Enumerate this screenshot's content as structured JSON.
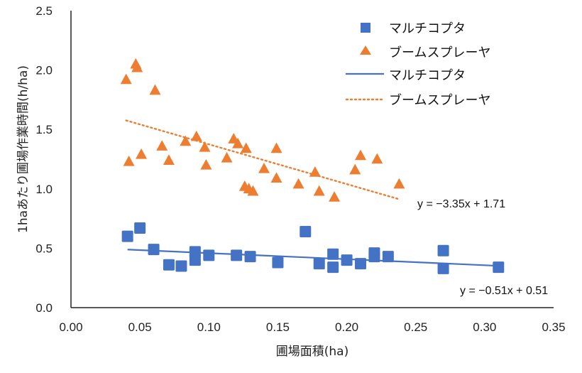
{
  "chart_data": {
    "type": "scatter",
    "title": "",
    "xlabel": "圃場面積(ha)",
    "ylabel": "1haあたり圃場作業時間(h/ha)",
    "xlim": [
      0,
      0.35
    ],
    "ylim": [
      0,
      2.5
    ],
    "xticks": [
      "0.00",
      "0.05",
      "0.10",
      "0.15",
      "0.20",
      "0.25",
      "0.30",
      "0.35"
    ],
    "xtick_values": [
      0,
      0.05,
      0.1,
      0.15,
      0.2,
      0.25,
      0.3,
      0.35
    ],
    "yticks": [
      "0.0",
      "0.5",
      "1.0",
      "1.5",
      "2.0",
      "2.5"
    ],
    "ytick_values": [
      0,
      0.5,
      1.0,
      1.5,
      2.0,
      2.5
    ],
    "grid": false,
    "legend_position": "top-right",
    "colors": {
      "multicopter": "#4472C4",
      "boom": "#ED7D31",
      "axis": "#222222"
    },
    "series": [
      {
        "name": "マルチコプタ",
        "marker": "square",
        "x": [
          0.041,
          0.05,
          0.06,
          0.071,
          0.08,
          0.09,
          0.09,
          0.1,
          0.12,
          0.13,
          0.15,
          0.17,
          0.18,
          0.19,
          0.19,
          0.2,
          0.21,
          0.22,
          0.22,
          0.23,
          0.27,
          0.27,
          0.31
        ],
        "y": [
          0.6,
          0.67,
          0.49,
          0.36,
          0.35,
          0.47,
          0.4,
          0.44,
          0.44,
          0.43,
          0.38,
          0.64,
          0.37,
          0.45,
          0.34,
          0.4,
          0.37,
          0.46,
          0.43,
          0.43,
          0.48,
          0.33,
          0.34
        ]
      },
      {
        "name": "ブームスプレーヤ",
        "marker": "triangle",
        "x": [
          0.04,
          0.047,
          0.048,
          0.061,
          0.042,
          0.051,
          0.066,
          0.071,
          0.083,
          0.091,
          0.097,
          0.098,
          0.113,
          0.118,
          0.121,
          0.127,
          0.126,
          0.129,
          0.132,
          0.14,
          0.149,
          0.149,
          0.165,
          0.177,
          0.18,
          0.191,
          0.206,
          0.21,
          0.222,
          0.238
        ],
        "y": [
          1.92,
          2.05,
          2.02,
          1.83,
          1.23,
          1.29,
          1.36,
          1.24,
          1.4,
          1.44,
          1.35,
          1.2,
          1.26,
          1.42,
          1.38,
          1.34,
          1.02,
          1.0,
          0.98,
          1.17,
          1.34,
          1.09,
          1.04,
          1.14,
          0.98,
          0.93,
          1.16,
          1.28,
          1.25,
          1.04
        ]
      }
    ],
    "trendlines": [
      {
        "name": "マルチコプタ",
        "style": "solid",
        "slope": -0.51,
        "intercept": 0.51,
        "x_range": [
          0.041,
          0.31
        ],
        "equation": "y = −0.51x + 0.51"
      },
      {
        "name": "ブームスプレーヤ",
        "style": "dotted",
        "slope": -3.35,
        "intercept": 1.71,
        "x_range": [
          0.04,
          0.238
        ],
        "equation": "y = −3.35x + 1.71"
      }
    ],
    "legend": [
      {
        "label": "マルチコプタ",
        "kind": "square"
      },
      {
        "label": "ブームスプレーヤ",
        "kind": "triangle"
      },
      {
        "label": "マルチコプタ",
        "kind": "solid-line"
      },
      {
        "label": "ブームスプレーヤ",
        "kind": "dotted-line"
      }
    ]
  }
}
